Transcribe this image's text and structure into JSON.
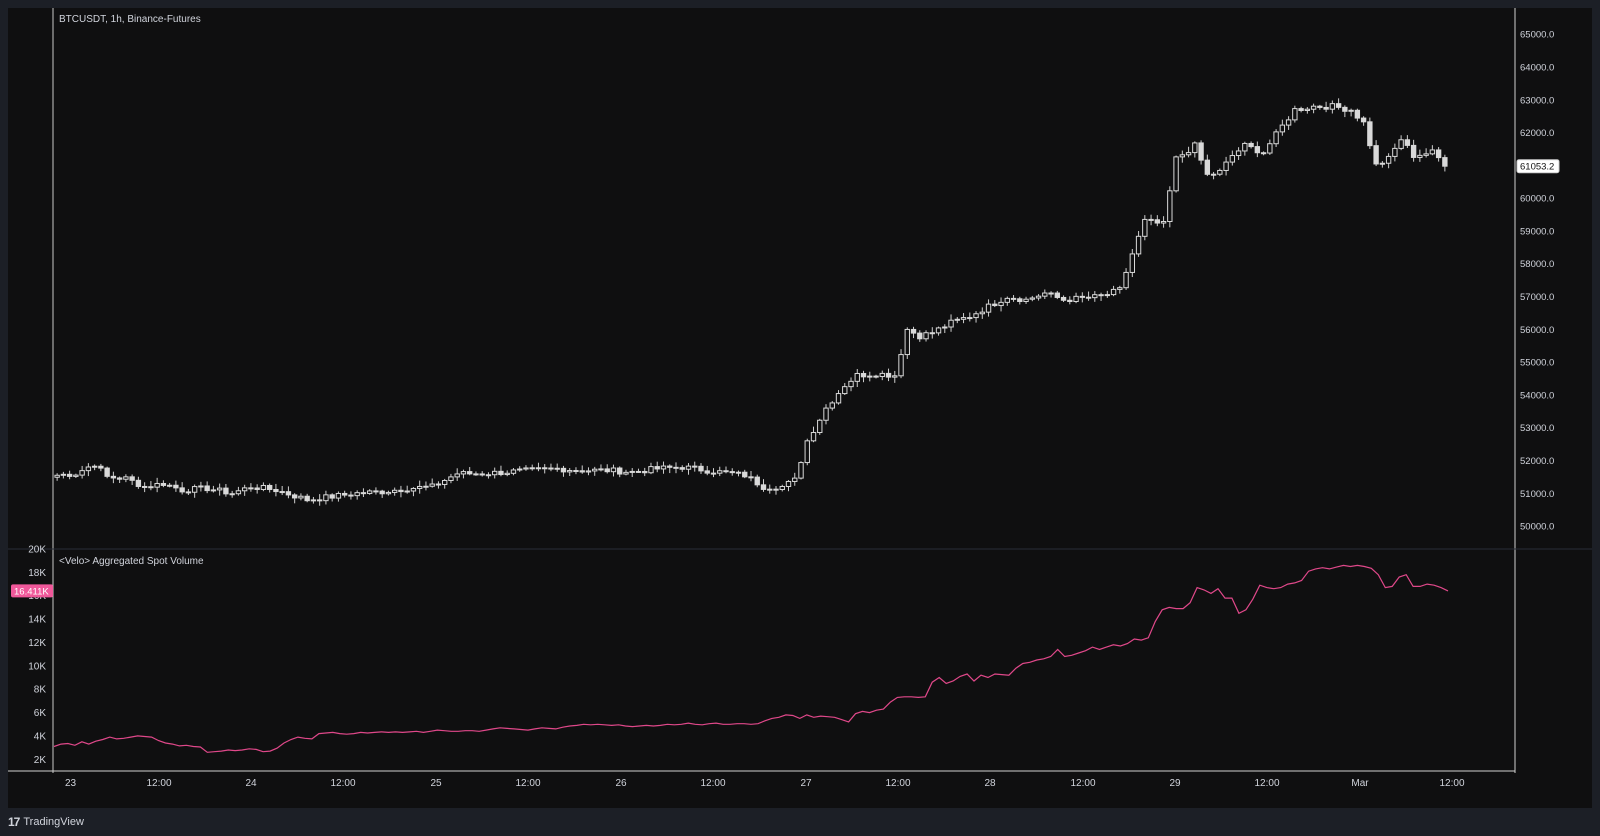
{
  "app": {
    "brand": "TradingView",
    "brand_mark": "17"
  },
  "price_pane": {
    "title": "BTCUSDT, 1h, Binance-Futures",
    "last_price_label": "61053.2",
    "axis_ticks": [
      "65000.0",
      "64000.0",
      "63000.0",
      "62000.0",
      "61000.0",
      "60000.0",
      "59000.0",
      "58000.0",
      "57000.0",
      "56000.0",
      "55000.0",
      "54000.0",
      "53000.0",
      "52000.0",
      "51000.0",
      "50000.0"
    ]
  },
  "volume_pane": {
    "title": "<Velo> Aggregated Spot Volume",
    "last_value_label": "16.411K",
    "axis_ticks": [
      "20K",
      "18K",
      "16K",
      "14K",
      "12K",
      "10K",
      "8K",
      "6K",
      "4K",
      "2K"
    ]
  },
  "time_axis": {
    "labels": [
      "23",
      "12:00",
      "24",
      "12:00",
      "25",
      "12:00",
      "26",
      "12:00",
      "27",
      "12:00",
      "28",
      "12:00",
      "29",
      "12:00",
      "Mar",
      "12:00"
    ]
  },
  "colors": {
    "background": "#0f0f10",
    "candle": "#d9d9d9",
    "volume_line": "#e0488a",
    "volume_label_bg": "#f0589a",
    "grid_separator": "#2a2e39"
  },
  "chart_data": [
    {
      "type": "candlestick",
      "title": "BTCUSDT, 1h, Binance-Futures",
      "xlabel": "",
      "ylabel": "",
      "ylim": [
        49300,
        65800
      ],
      "grid": false,
      "anchor_prices": [
        [
          0,
          51550
        ],
        [
          3,
          51600
        ],
        [
          6,
          51900
        ],
        [
          8,
          51500
        ],
        [
          11,
          51450
        ],
        [
          14,
          51200
        ],
        [
          17,
          51300
        ],
        [
          20,
          51100
        ],
        [
          24,
          51150
        ],
        [
          28,
          51000
        ],
        [
          31,
          51200
        ],
        [
          35,
          51100
        ],
        [
          40,
          50800
        ],
        [
          44,
          50900
        ],
        [
          48,
          51000
        ],
        [
          52,
          51050
        ],
        [
          56,
          51150
        ],
        [
          60,
          51200
        ],
        [
          64,
          51600
        ],
        [
          68,
          51600
        ],
        [
          72,
          51650
        ],
        [
          76,
          51700
        ],
        [
          80,
          51750
        ],
        [
          84,
          51700
        ],
        [
          88,
          51700
        ],
        [
          92,
          51650
        ],
        [
          96,
          51750
        ],
        [
          100,
          51800
        ],
        [
          104,
          51700
        ],
        [
          108,
          51600
        ],
        [
          110,
          51550
        ],
        [
          113,
          51200
        ],
        [
          116,
          51200
        ],
        [
          118,
          51400
        ],
        [
          120,
          52600
        ],
        [
          123,
          53600
        ],
        [
          126,
          54300
        ],
        [
          128,
          54600
        ],
        [
          131,
          54650
        ],
        [
          134,
          54600
        ],
        [
          136,
          56000
        ],
        [
          138,
          55800
        ],
        [
          140,
          55900
        ],
        [
          143,
          56200
        ],
        [
          146,
          56400
        ],
        [
          149,
          56700
        ],
        [
          152,
          57000
        ],
        [
          155,
          56900
        ],
        [
          158,
          57100
        ],
        [
          161,
          56900
        ],
        [
          164,
          56950
        ],
        [
          167,
          57000
        ],
        [
          170,
          57200
        ],
        [
          172,
          58300
        ],
        [
          174,
          59300
        ],
        [
          177,
          59200
        ],
        [
          179,
          61200
        ],
        [
          182,
          61600
        ],
        [
          184,
          60700
        ],
        [
          186,
          60800
        ],
        [
          188,
          61300
        ],
        [
          190,
          61600
        ],
        [
          193,
          61400
        ],
        [
          196,
          62200
        ],
        [
          198,
          62700
        ],
        [
          201,
          62800
        ],
        [
          204,
          62800
        ],
        [
          207,
          62700
        ],
        [
          209,
          62300
        ],
        [
          211,
          61000
        ],
        [
          213,
          61200
        ],
        [
          215,
          61800
        ],
        [
          217,
          61300
        ],
        [
          220,
          61400
        ],
        [
          222,
          61050
        ]
      ]
    },
    {
      "type": "line",
      "title": "<Velo> Aggregated Spot Volume",
      "xlabel": "",
      "ylabel": "",
      "ylim": [
        1000,
        20000
      ],
      "grid": false,
      "series": [
        {
          "values": [
            3100,
            3300,
            3350,
            3200,
            3500,
            3300,
            3550,
            3700,
            3900,
            3750,
            3800,
            3900,
            4000,
            3950,
            3900,
            3600,
            3400,
            3300,
            3150,
            3200,
            3100,
            3050,
            2600,
            2650,
            2700,
            2800,
            2750,
            2800,
            2900,
            2850,
            2650,
            2700,
            2950,
            3400,
            3700,
            3900,
            3800,
            3750,
            4200,
            4250,
            4300,
            4200,
            4150,
            4200,
            4300,
            4250,
            4300,
            4350,
            4300,
            4350,
            4300,
            4350,
            4400,
            4300,
            4400,
            4500,
            4450,
            4400,
            4400,
            4450,
            4450,
            4400,
            4500,
            4600,
            4700,
            4650,
            4600,
            4550,
            4500,
            4600,
            4700,
            4650,
            4600,
            4750,
            4850,
            4900,
            5000,
            4950,
            5000,
            4950,
            4900,
            4950,
            4850,
            4800,
            4850,
            4900,
            4850,
            4900,
            5000,
            4950,
            5000,
            5100,
            5000,
            4950,
            5050,
            5100,
            5000,
            5000,
            5050,
            5050,
            5000,
            5050,
            5300,
            5500,
            5600,
            5800,
            5750,
            5500,
            5800,
            5600,
            5700,
            5650,
            5600,
            5400,
            5200,
            5900,
            6100,
            6000,
            6200,
            6300,
            6900,
            7300,
            7350,
            7350,
            7300,
            7350,
            8600,
            9000,
            8500,
            8700,
            9100,
            9300,
            8700,
            9200,
            9000,
            9300,
            9250,
            9200,
            9800,
            10200,
            10300,
            10500,
            10600,
            10800,
            11400,
            10800,
            10900,
            11100,
            11300,
            11600,
            11400,
            11600,
            11800,
            11700,
            11900,
            12300,
            12200,
            12400,
            13800,
            14800,
            15000,
            14900,
            14900,
            15400,
            16700,
            16500,
            16200,
            16600,
            15800,
            15800,
            14500,
            14800,
            15700,
            16900,
            16700,
            16600,
            16700,
            17000,
            17100,
            17300,
            18100,
            18300,
            18400,
            18300,
            18450,
            18600,
            18500,
            18600,
            18500,
            18350,
            17800,
            16700,
            16800,
            17600,
            17800,
            16800,
            16800,
            17000,
            16900,
            16700,
            16411
          ]
        }
      ]
    }
  ]
}
